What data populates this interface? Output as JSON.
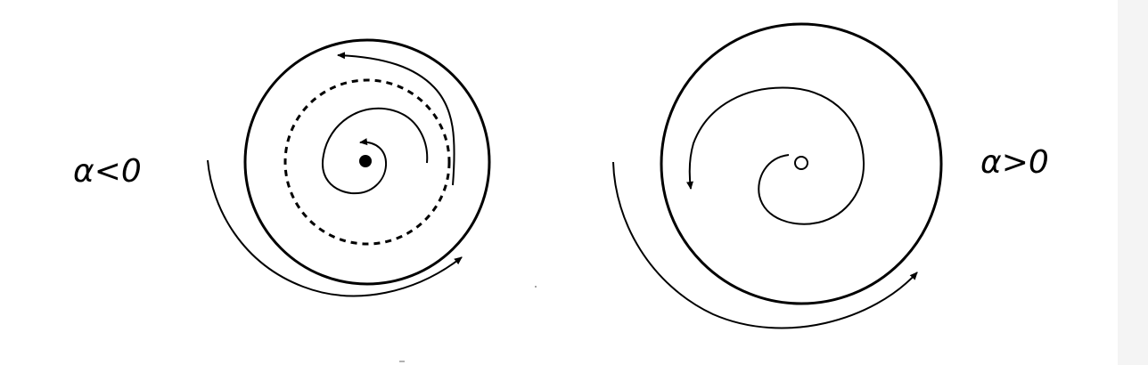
{
  "left_panel": {
    "label": "α<0"
  },
  "right_panel": {
    "label": "α>0"
  },
  "colors": {
    "ink": "#000000",
    "background": "#ffffff",
    "margin_strip": "#f4f4f4"
  }
}
